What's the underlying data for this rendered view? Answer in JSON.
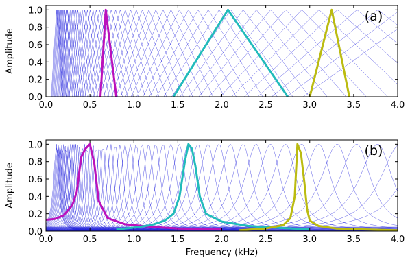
{
  "chart_data": [
    {
      "type": "line",
      "panel_label": "(a)",
      "xlabel": "",
      "ylabel": "Amplitude",
      "xlim": [
        0.0,
        4.0
      ],
      "ylim": [
        0.0,
        1.05
      ],
      "x_ticks": [
        "0.0",
        "0.5",
        "1.0",
        "1.5",
        "2.0",
        "2.5",
        "3.0",
        "3.5",
        "4.0"
      ],
      "y_ticks": [
        "0.0",
        "0.2",
        "0.4",
        "0.6",
        "0.8",
        "1.0"
      ],
      "filter_shape": "triangular",
      "background_filter_color": "#2222dd",
      "highlighted_filters": [
        {
          "x": [
            0.62,
            0.68,
            0.8
          ],
          "y": [
            0.0,
            1.0,
            0.0
          ],
          "color": "#bb11bb"
        },
        {
          "x": [
            1.45,
            2.07,
            2.75
          ],
          "y": [
            0.0,
            1.0,
            0.0
          ],
          "color": "#22bbbb"
        },
        {
          "x": [
            3.0,
            3.25,
            3.45
          ],
          "y": [
            0.0,
            1.0,
            0.0
          ],
          "color": "#bbbb11"
        }
      ]
    },
    {
      "type": "line",
      "panel_label": "(b)",
      "xlabel": "Frequency (kHz)",
      "ylabel": "Amplitude",
      "xlim": [
        0.0,
        4.0
      ],
      "ylim": [
        0.0,
        1.05
      ],
      "x_ticks": [
        "0.0",
        "0.5",
        "1.0",
        "1.5",
        "2.0",
        "2.5",
        "3.0",
        "3.5",
        "4.0"
      ],
      "y_ticks": [
        "0.0",
        "0.2",
        "0.4",
        "0.6",
        "0.8",
        "1.0"
      ],
      "filter_shape": "gammatone",
      "background_filter_color": "#2222dd",
      "highlighted_filters": [
        {
          "x": [
            0.0,
            0.1,
            0.2,
            0.3,
            0.35,
            0.4,
            0.45,
            0.5,
            0.55,
            0.6,
            0.7,
            0.9,
            1.2,
            1.5,
            2.0
          ],
          "y": [
            0.13,
            0.14,
            0.18,
            0.3,
            0.45,
            0.85,
            0.95,
            1.0,
            0.78,
            0.35,
            0.15,
            0.08,
            0.05,
            0.03,
            0.02
          ],
          "color": "#bb11bb"
        },
        {
          "x": [
            0.8,
            1.0,
            1.2,
            1.35,
            1.45,
            1.52,
            1.58,
            1.62,
            1.66,
            1.7,
            1.75,
            1.82,
            2.0,
            2.3,
            2.6,
            3.0
          ],
          "y": [
            0.02,
            0.04,
            0.07,
            0.12,
            0.2,
            0.4,
            0.8,
            1.0,
            0.95,
            0.75,
            0.4,
            0.2,
            0.11,
            0.06,
            0.04,
            0.02
          ],
          "color": "#22bbbb"
        },
        {
          "x": [
            2.2,
            2.5,
            2.7,
            2.78,
            2.83,
            2.86,
            2.9,
            2.94,
            2.97,
            3.0,
            3.1,
            3.3,
            3.6,
            4.0
          ],
          "y": [
            0.01,
            0.03,
            0.07,
            0.15,
            0.4,
            1.0,
            0.9,
            0.55,
            0.25,
            0.12,
            0.06,
            0.03,
            0.02,
            0.01
          ],
          "color": "#bbbb11"
        }
      ]
    }
  ]
}
